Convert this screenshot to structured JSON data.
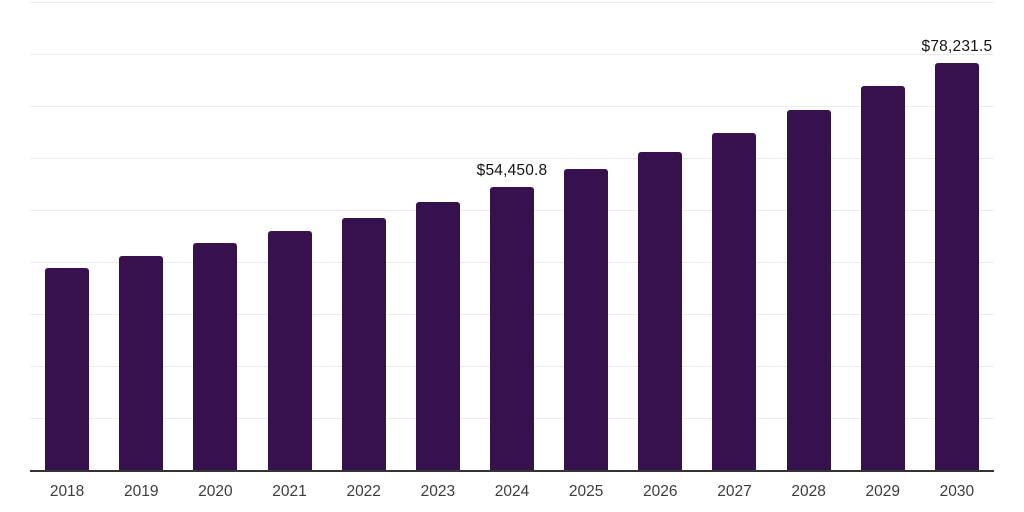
{
  "chart_data": {
    "type": "bar",
    "categories": [
      "2018",
      "2019",
      "2020",
      "2021",
      "2022",
      "2023",
      "2024",
      "2025",
      "2026",
      "2027",
      "2028",
      "2029",
      "2030"
    ],
    "values": [
      38900,
      41250,
      43700,
      45900,
      48400,
      51550,
      54450.8,
      57800,
      61250,
      64900,
      69200,
      73800,
      78231.5
    ],
    "data_labels": {
      "2024": "$54,450.8",
      "2030": "$78,231.5"
    },
    "title": "",
    "xlabel": "",
    "ylabel": "",
    "ylim": [
      0,
      90000
    ],
    "grid_step": 10000,
    "grid": true,
    "legend": false,
    "colors": {
      "bar": "#36114E",
      "gridline": "#ebebeb",
      "axis": "#333333",
      "tick_label": "#3c3c3c",
      "data_label": "#141414"
    }
  }
}
